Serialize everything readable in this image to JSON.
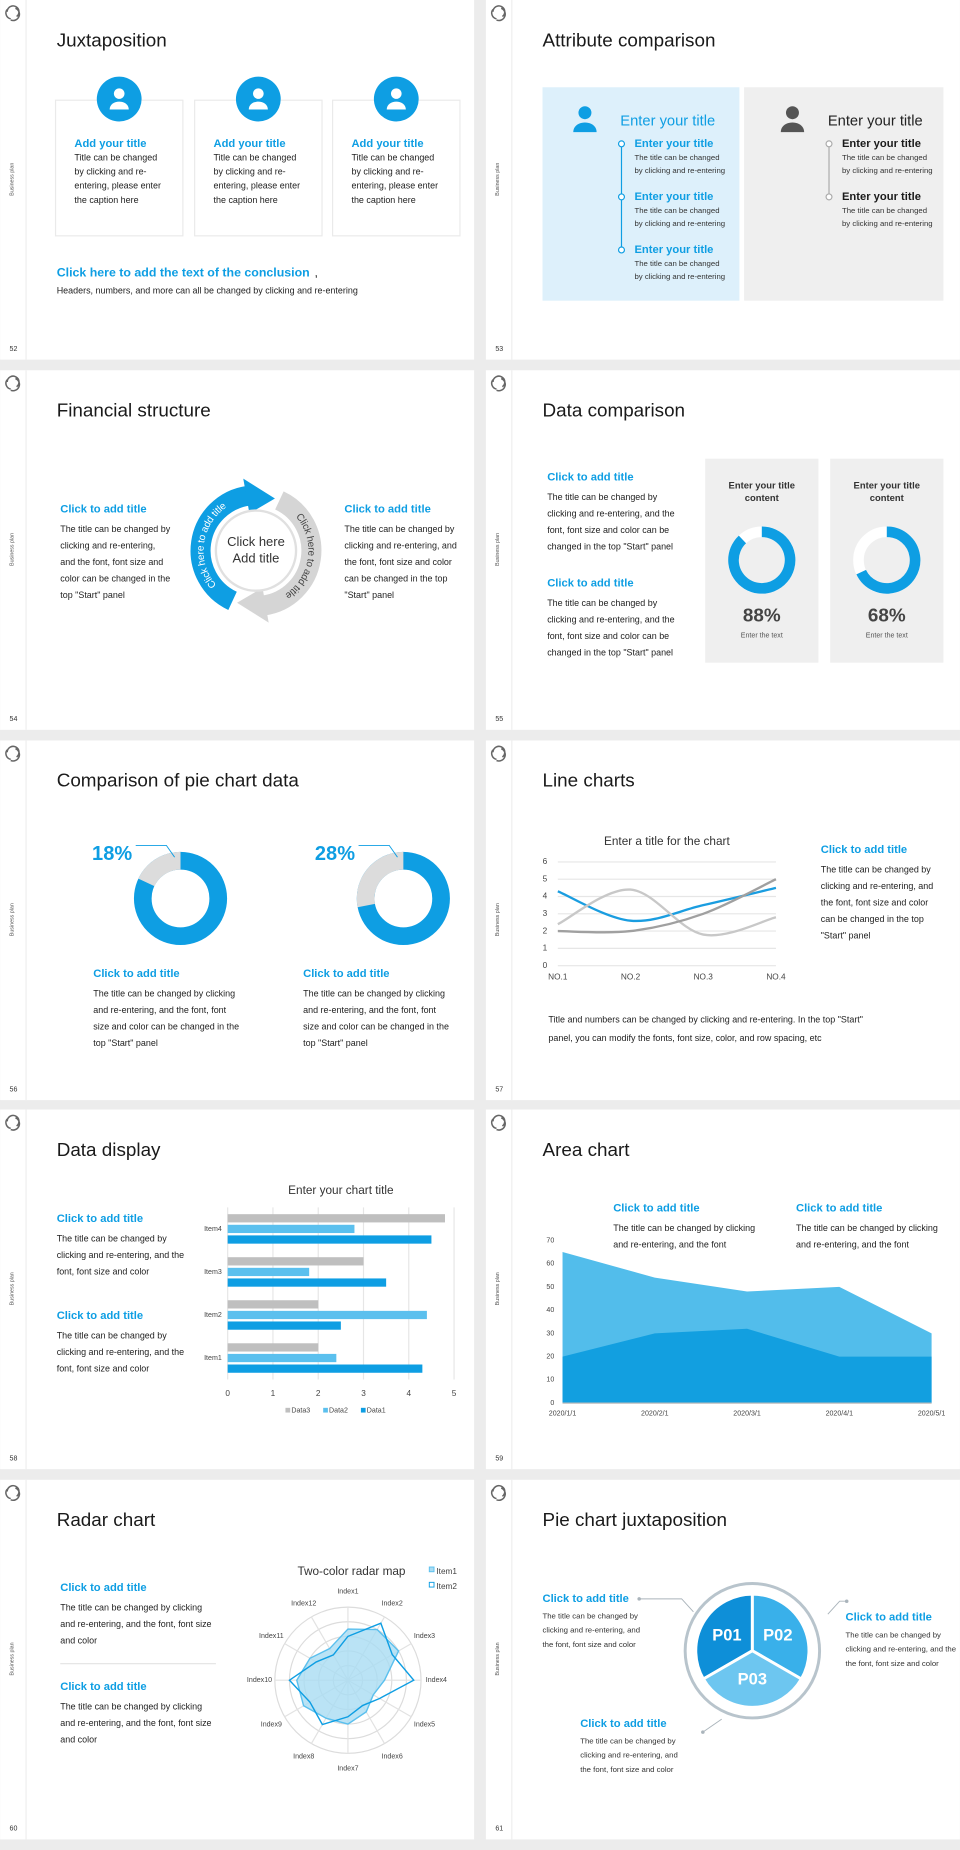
{
  "slides": [
    {
      "number": "52",
      "side": "Business plan",
      "title": "Juxtaposition",
      "cards": [
        {
          "heading": "Add your title",
          "body": [
            "Title can be changed",
            "by clicking and re-",
            "entering, please enter",
            "the caption here"
          ]
        },
        {
          "heading": "Add your title",
          "body": [
            "Title can be changed",
            "by clicking and re-",
            "entering, please enter",
            "the caption here"
          ]
        },
        {
          "heading": "Add your title",
          "body": [
            "Title can be changed",
            "by clicking and re-",
            "entering, please enter",
            "the caption here"
          ]
        }
      ],
      "conclusion": {
        "link": "Click here to add the text of the conclusion",
        "comma": ",",
        "text": "Headers, numbers, and more can all be changed by clicking and re-entering"
      }
    },
    {
      "number": "53",
      "side": "Business plan",
      "title": "Attribute comparison",
      "columns": [
        {
          "heading": "Enter your title",
          "items": [
            {
              "title": "Enter your title",
              "body": [
                "The title can be changed",
                "by clicking and re-entering"
              ]
            },
            {
              "title": "Enter your title",
              "body": [
                "The title can be changed",
                "by clicking and re-entering"
              ]
            },
            {
              "title": "Enter your title",
              "body": [
                "The title can be changed",
                "by clicking and re-entering"
              ]
            }
          ]
        },
        {
          "heading": "Enter your title",
          "items": [
            {
              "title": "Enter your title",
              "body": [
                "The title can be changed",
                "by clicking and re-entering"
              ]
            },
            {
              "title": "Enter your title",
              "body": [
                "The title can be changed",
                "by clicking and re-entering"
              ]
            }
          ]
        }
      ]
    },
    {
      "number": "54",
      "side": "Business plan",
      "title": "Financial structure",
      "blocks": [
        {
          "heading": "Click to add title",
          "body": [
            "The title can be changed by",
            "clicking and re-entering,",
            "and the font, font size and",
            "color can be changed in the",
            "top \"Start\" panel"
          ]
        },
        {
          "heading": "Click to add title",
          "body": [
            "The title can be changed by",
            "clicking and re-entering, and",
            "the font, font size and color",
            "can be changed in the top",
            "\"Start\" panel"
          ]
        }
      ],
      "cycle": {
        "center": [
          "Click here",
          "Add title"
        ],
        "arcs": [
          "Click here to add title",
          "Click here to add title"
        ]
      }
    },
    {
      "number": "55",
      "side": "Business plan",
      "title": "Data comparison",
      "blocks": [
        {
          "heading": "Click to add title",
          "body": [
            "The title can be changed by",
            "clicking and re-entering, and the",
            "font, font size and color can be",
            "changed in the top \"Start\" panel"
          ]
        },
        {
          "heading": "Click to add title",
          "body": [
            "The title can be changed by",
            "clicking and re-entering, and the",
            "font, font size and color can be",
            "changed in the top \"Start\" panel"
          ]
        }
      ],
      "cards": [
        {
          "title": [
            "Enter your title",
            "content"
          ],
          "value": 88,
          "value_label": "88%",
          "caption": "Enter the text"
        },
        {
          "title": [
            "Enter your title",
            "content"
          ],
          "value": 68,
          "value_label": "68%",
          "caption": "Enter the text"
        }
      ]
    },
    {
      "number": "56",
      "side": "Business plan",
      "title": "Comparison of pie chart data",
      "chart": {
        "type": "donut",
        "values": [
          18,
          28
        ],
        "value_labels": [
          "18%",
          "28%"
        ],
        "color": "#dcdcdc",
        "track_color": "#0e9ee3"
      },
      "blocks": [
        {
          "heading": "Click to add title",
          "body": [
            "The title can be changed by clicking",
            "and re-entering, and the font, font",
            "size and color can be changed in the",
            "top \"Start\" panel"
          ]
        },
        {
          "heading": "Click to add title",
          "body": [
            "The title can be changed by clicking",
            "and re-entering, and the font, font",
            "size and color can be changed in the",
            "top \"Start\" panel"
          ]
        }
      ]
    },
    {
      "number": "57",
      "side": "Business plan",
      "title": "Line charts",
      "chart": {
        "type": "line",
        "title": "Enter a title for the chart",
        "categories": [
          "NO.1",
          "NO.2",
          "NO.3",
          "NO.4"
        ],
        "series": [
          {
            "color": "#1a9de0",
            "values": [
              4.3,
              2.6,
              3.5,
              4.5
            ]
          },
          {
            "color": "#c8c8c8",
            "values": [
              2.4,
              4.4,
              1.8,
              2.8
            ]
          },
          {
            "color": "#a0a0a0",
            "values": [
              2.0,
              2.0,
              3.0,
              5.0
            ]
          }
        ],
        "ylim": [
          0,
          6
        ],
        "yticks": [
          0,
          1,
          2,
          3,
          4,
          5,
          6
        ],
        "grid": true,
        "smooth": true
      },
      "blocks": [
        {
          "heading": "Click to add title",
          "body": [
            "The title can be changed by",
            "clicking and re-entering, and",
            "the font, font size and color",
            "can be changed in the top",
            "\"Start\" panel"
          ]
        }
      ],
      "note": [
        "Title and numbers can be changed by clicking and re-entering. In the top \"Start\"",
        "panel, you can modify the fonts, font size, color, and row spacing, etc"
      ]
    },
    {
      "number": "58",
      "side": "Business plan",
      "title": "Data display",
      "blocks": [
        {
          "heading": "Click to add title",
          "body": [
            "The title can be changed by",
            "clicking and re-entering, and the",
            "font, font size and color"
          ]
        },
        {
          "heading": "Click to add title",
          "body": [
            "The title can be changed by",
            "clicking and re-entering, and the",
            "font, font size and color"
          ]
        }
      ],
      "chart": {
        "type": "hbar",
        "title": "Enter your chart title",
        "categories": [
          "Item1",
          "Item2",
          "Item3",
          "Item4"
        ],
        "series": [
          {
            "name": "Data3",
            "color": "#bfbfbf",
            "values": [
              2.0,
              2.0,
              3.0,
              4.8
            ]
          },
          {
            "name": "Data2",
            "color": "#5bc0ee",
            "values": [
              2.4,
              4.4,
              1.8,
              2.8
            ]
          },
          {
            "name": "Data1",
            "color": "#0e9ee3",
            "values": [
              4.3,
              2.5,
              3.5,
              4.5
            ]
          }
        ],
        "xlim": [
          0,
          5
        ],
        "xticks": [
          0,
          1,
          2,
          3,
          4,
          5
        ],
        "grid": true,
        "legend": "bottom"
      }
    },
    {
      "number": "59",
      "side": "Business plan",
      "title": "Area chart",
      "blocks": [
        {
          "heading": "Click to add title",
          "body": [
            "The title can be changed by clicking",
            "and re-entering, and the font"
          ]
        },
        {
          "heading": "Click to add title",
          "body": [
            "The title can be changed by clicking",
            "and re-entering, and the font"
          ]
        }
      ],
      "chart": {
        "type": "area",
        "categories": [
          "2020/1/1",
          "2020/2/1",
          "2020/3/1",
          "2020/4/1",
          "2020/5/1"
        ],
        "series": [
          {
            "color": "#52bdeb",
            "values": [
              65,
              54,
              48,
              50,
              30
            ]
          },
          {
            "color": "#129fe0",
            "values": [
              20,
              30,
              32,
              20,
              20
            ]
          }
        ],
        "ylim": [
          0,
          70
        ],
        "yticks": [
          0,
          10,
          20,
          30,
          40,
          50,
          60,
          70
        ],
        "grid": false
      }
    },
    {
      "number": "60",
      "side": "Business plan",
      "title": "Radar chart",
      "blocks": [
        {
          "heading": "Click to add title",
          "body": [
            "The title can be changed by clicking",
            "and re-entering, and the font, font size",
            "and color"
          ]
        },
        {
          "heading": "Click to add title",
          "body": [
            "The title can be changed by clicking",
            "and re-entering, and the font, font size",
            "and color"
          ]
        }
      ],
      "chart": {
        "type": "radar",
        "title": "Two-color radar map",
        "categories": [
          "Index1",
          "Index2",
          "Index3",
          "Index4",
          "Index5",
          "Index6",
          "Index7",
          "Index8",
          "Index9",
          "Index10",
          "Index11",
          "Index12"
        ],
        "series": [
          {
            "name": "Item1",
            "color": "#5bc0ee",
            "fill": "#a9dcf3",
            "values": [
              3.5,
              4.0,
              4.0,
              2.5,
              2.0,
              2.5,
              3.0,
              3.0,
              3.5,
              3.5,
              3.0,
              2.5
            ]
          },
          {
            "name": "Item2",
            "color": "#0e9ee3",
            "values": [
              3.0,
              4.5,
              3.5,
              4.5,
              2.5,
              2.0,
              2.5,
              3.5,
              3.0,
              4.0,
              2.5,
              2.0
            ]
          }
        ],
        "rlim": [
          0,
          5
        ],
        "rticks": [
          1,
          2,
          3,
          4,
          5
        ],
        "legend": "top-right"
      }
    },
    {
      "number": "61",
      "side": "Business plan",
      "title": "Pie chart juxtaposition",
      "chart": {
        "type": "pie",
        "categories": [
          "P01",
          "P02",
          "P03"
        ],
        "values": [
          33.3,
          33.3,
          33.3
        ],
        "colors": [
          "#0e8fd8",
          "#39b0ea",
          "#6dc6f0"
        ]
      },
      "blocks": [
        {
          "heading": "Click to add title",
          "body": [
            "The title can be changed by",
            "clicking and re-entering, and",
            "the font, font size and color"
          ]
        },
        {
          "heading": "Click to add title",
          "body": [
            "The title can be changed by",
            "clicking and re-entering, and the",
            "the font, font size and color"
          ]
        },
        {
          "heading": "Click to add title",
          "body": [
            "The title can be changed by",
            "clicking and re-entering, and",
            "the font, font size and color"
          ]
        }
      ]
    }
  ]
}
